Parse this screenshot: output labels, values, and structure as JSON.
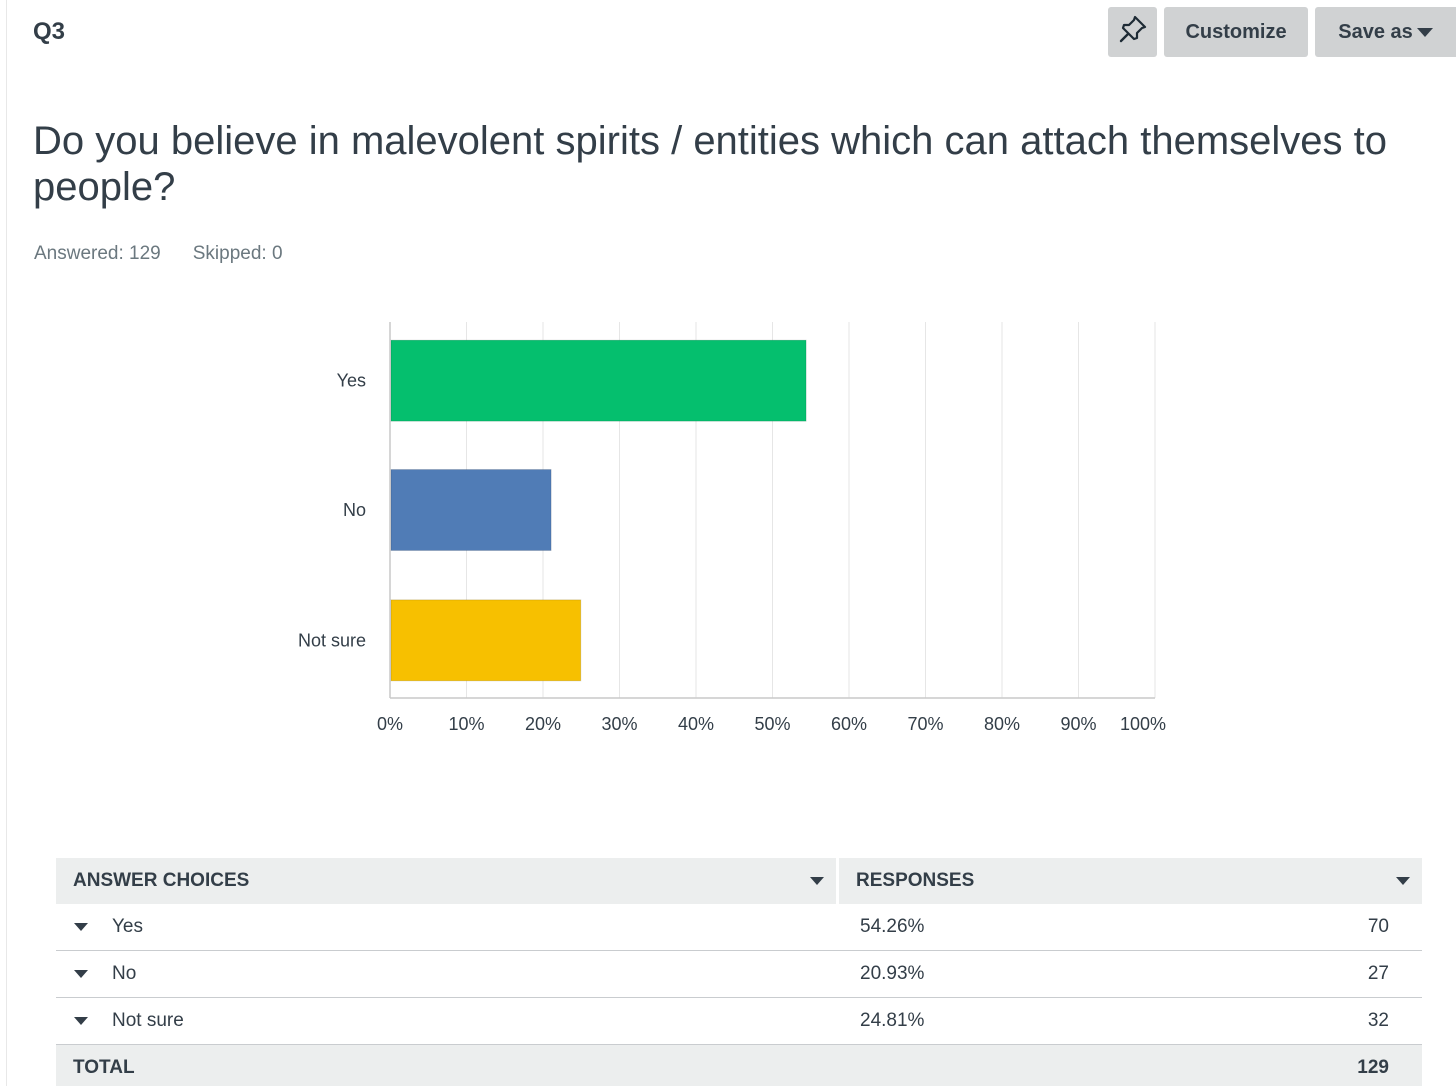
{
  "question": {
    "number": "Q3",
    "title": "Do you believe in malevolent spirits / entities which can attach themselves to people?",
    "answered_label": "Answered: 129",
    "skipped_label": "Skipped: 0"
  },
  "toolbar": {
    "pin_icon": "pin-icon",
    "customize_label": "Customize",
    "save_as_label": "Save as"
  },
  "chart_data": {
    "type": "bar",
    "orientation": "horizontal",
    "categories": [
      "Yes",
      "No",
      "Not sure"
    ],
    "values": [
      54.26,
      20.93,
      24.81
    ],
    "colors": [
      "#05bf6e",
      "#507cb6",
      "#f7c000"
    ],
    "xlim": [
      0,
      100
    ],
    "x_ticks": [
      "0%",
      "10%",
      "20%",
      "30%",
      "40%",
      "50%",
      "60%",
      "70%",
      "80%",
      "90%",
      "100%"
    ],
    "grid": true,
    "legend": "none"
  },
  "table": {
    "headers": {
      "choices": "ANSWER CHOICES",
      "responses": "RESPONSES"
    },
    "rows": [
      {
        "choice": "Yes",
        "percent": "54.26%",
        "count": "70"
      },
      {
        "choice": "No",
        "percent": "20.93%",
        "count": "27"
      },
      {
        "choice": "Not sure",
        "percent": "24.81%",
        "count": "32"
      }
    ],
    "total_label": "TOTAL",
    "total_value": "129"
  }
}
